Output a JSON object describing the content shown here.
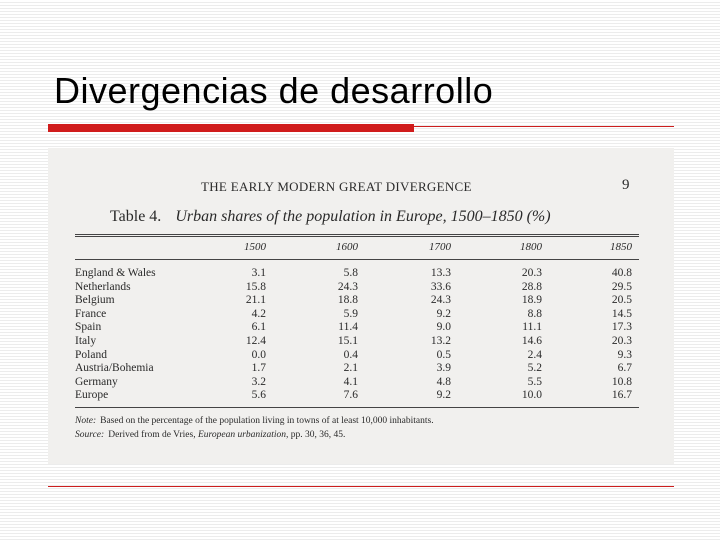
{
  "slide": {
    "title": "Divergencias de desarrollo"
  },
  "scan": {
    "running_head": "THE EARLY MODERN GREAT DIVERGENCE",
    "page_number": "9",
    "table": {
      "label": "Table 4.",
      "caption": "Urban shares of the population in Europe, 1500–1850 (%)",
      "years": [
        "1500",
        "1600",
        "1700",
        "1800",
        "1850"
      ],
      "rows": [
        {
          "country": "England & Wales",
          "values": [
            "3.1",
            "5.8",
            "13.3",
            "20.3",
            "40.8"
          ]
        },
        {
          "country": "Netherlands",
          "values": [
            "15.8",
            "24.3",
            "33.6",
            "28.8",
            "29.5"
          ]
        },
        {
          "country": "Belgium",
          "values": [
            "21.1",
            "18.8",
            "24.3",
            "18.9",
            "20.5"
          ]
        },
        {
          "country": "France",
          "values": [
            "4.2",
            "5.9",
            "9.2",
            "8.8",
            "14.5"
          ]
        },
        {
          "country": "Spain",
          "values": [
            "6.1",
            "11.4",
            "9.0",
            "11.1",
            "17.3"
          ]
        },
        {
          "country": "Italy",
          "values": [
            "12.4",
            "15.1",
            "13.2",
            "14.6",
            "20.3"
          ]
        },
        {
          "country": "Poland",
          "values": [
            "0.0",
            "0.4",
            "0.5",
            "2.4",
            "9.3"
          ]
        },
        {
          "country": "Austria/Bohemia",
          "values": [
            "1.7",
            "2.1",
            "3.9",
            "5.2",
            "6.7"
          ]
        },
        {
          "country": "Germany",
          "values": [
            "3.2",
            "4.1",
            "4.8",
            "5.5",
            "10.8"
          ]
        },
        {
          "country": "Europe",
          "values": [
            "5.6",
            "7.6",
            "9.2",
            "10.0",
            "16.7"
          ]
        }
      ],
      "note_label": "Note:",
      "note_text": "Based on the percentage of the population living in towns of at least 10,000 inhabitants.",
      "source_label": "Source:",
      "source_prefix": "Derived from de Vries, ",
      "source_title": "European urbanization",
      "source_suffix": ", pp. 30, 36, 45."
    }
  },
  "colors": {
    "accent": "#d01c1c",
    "background_stripe": "#ececec",
    "scan_paper": "#f1f0ee"
  }
}
